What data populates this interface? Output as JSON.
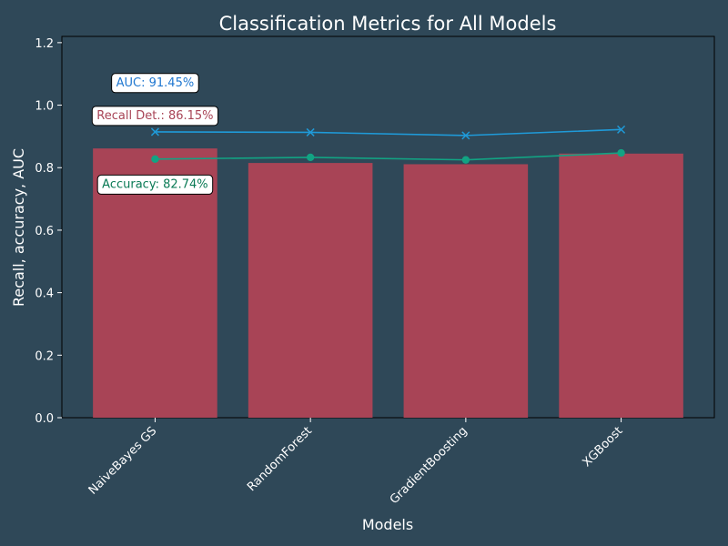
{
  "colors": {
    "background": "#2f4858",
    "bar": "#a84456",
    "auc_line": "#1f9ad8",
    "accuracy_line": "#12a383",
    "text": "#ffffff",
    "annotation_box": "#ffffff",
    "auc_text": "#1f77d0",
    "recall_text": "#a84456",
    "accuracy_text": "#0a7a55"
  },
  "chart_data": {
    "type": "bar",
    "title": "Classification Metrics for All Models",
    "xlabel": "Models",
    "ylabel": "Recall, accuracy, AUC",
    "categories": [
      "NaiveBayes GS",
      "RandomForest",
      "GradientBoosting",
      "XGBoost"
    ],
    "ylim": [
      0,
      1.22
    ],
    "yticks": [
      0.0,
      0.2,
      0.4,
      0.6,
      0.8,
      1.0,
      1.2
    ],
    "ytick_labels": [
      "0.0",
      "0.2",
      "0.4",
      "0.6",
      "0.8",
      "1.0",
      "1.2"
    ],
    "grid": false,
    "series": [
      {
        "type": "bar",
        "values": [
          0.8615,
          0.815,
          0.811,
          0.845
        ]
      },
      {
        "type": "line",
        "marker": "x",
        "values": [
          0.9145,
          0.913,
          0.903,
          0.922
        ]
      },
      {
        "type": "line",
        "marker": "o",
        "values": [
          0.8274,
          0.833,
          0.825,
          0.847
        ]
      }
    ],
    "annotations": [
      {
        "text": "AUC: 91.45%",
        "x": 0,
        "y": 1.075,
        "color_key": "auc_text"
      },
      {
        "text": "Recall Det.: 86.15%",
        "x": 0,
        "y": 0.97,
        "color_key": "recall_text"
      },
      {
        "text": "Accuracy: 82.74%",
        "x": 0,
        "y": 0.75,
        "color_key": "accuracy_text"
      }
    ]
  }
}
